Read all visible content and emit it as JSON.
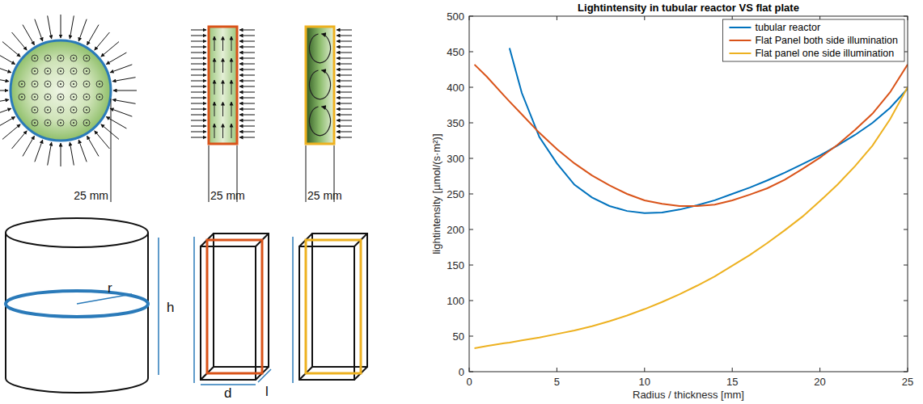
{
  "chart_data": {
    "type": "line",
    "title": "Lightintensity in tubular reactor VS flat plate",
    "x_label": "Radius / thickness [mm]",
    "y_label": "lightintensity [µmol/(s·m²)]",
    "x": [
      0.3,
      1,
      2,
      2.3,
      3,
      4,
      5,
      6,
      7,
      8,
      9,
      10,
      11,
      12,
      13,
      14,
      15,
      16,
      17,
      18,
      19,
      20,
      21,
      22,
      23,
      24,
      25
    ],
    "series": [
      {
        "name": "tubular reactor",
        "color": "#0072bd",
        "values": [
          null,
          null,
          null,
          455,
          392,
          330,
          293,
          263,
          245,
          233,
          226,
          223,
          224,
          228,
          234,
          241,
          250,
          259,
          269,
          280,
          292,
          304,
          318,
          333,
          350,
          371,
          398
        ]
      },
      {
        "name": "Flat Panel both side illumination",
        "color": "#d95319",
        "values": [
          432,
          415,
          388,
          380,
          362,
          336,
          313,
          293,
          276,
          262,
          250,
          241,
          236,
          233,
          233,
          235,
          241,
          249,
          258,
          270,
          285,
          301,
          319,
          340,
          363,
          393,
          432
        ]
      },
      {
        "name": "Flat panel one side illumination",
        "color": "#edb120",
        "values": [
          33,
          36,
          40,
          41,
          44,
          48,
          53,
          58,
          64,
          71,
          79,
          88,
          98,
          109,
          121,
          134,
          149,
          164,
          181,
          199,
          218,
          240,
          263,
          289,
          318,
          355,
          400
        ]
      }
    ],
    "xlim": [
      0,
      25
    ],
    "xticks": [
      0,
      5,
      10,
      15,
      20,
      25
    ],
    "ylim": [
      0,
      500
    ],
    "yticks": [
      0,
      50,
      100,
      150,
      200,
      250,
      300,
      350,
      400,
      450,
      500
    ],
    "grid": false,
    "legend": "northeast"
  },
  "diagram": {
    "widths": [
      "25 mm",
      "25 mm",
      "25 mm"
    ],
    "tube_labels": [
      "r",
      "h"
    ],
    "panel_labels": [
      "d",
      "l"
    ]
  }
}
